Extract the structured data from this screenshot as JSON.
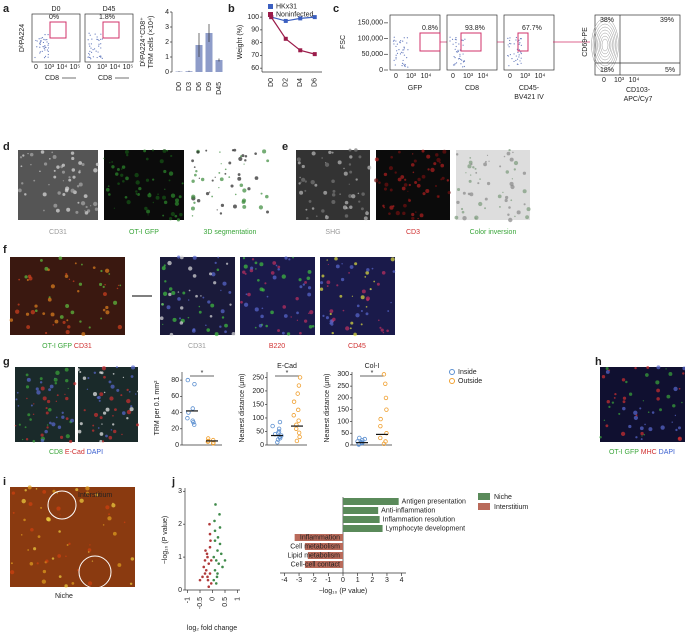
{
  "figure": {
    "panels": {
      "a": {
        "label": "a",
        "flow": [
          {
            "title": "D0",
            "gate": "0%"
          },
          {
            "title": "D45",
            "gate": "1.8%"
          }
        ],
        "flow_ylabel": "DᵇPA224",
        "flow_xlabel": "CD8",
        "flow_xticks": [
          "0",
          "10³",
          "10⁴",
          "10⁵"
        ],
        "bar": {
          "type": "bar",
          "ylabel": [
            "DᵇPA224⁺CD8⁺",
            "TRM cells (×10⁴)"
          ],
          "categories": [
            "D0",
            "D3",
            "D6",
            "D9",
            "D45"
          ],
          "values": [
            0.03,
            0.05,
            1.8,
            2.6,
            0.8
          ],
          "errors": [
            0.02,
            0.03,
            0.8,
            0.6,
            0.1
          ],
          "ylim": [
            0,
            4
          ],
          "yticks": [
            0,
            1,
            2,
            3,
            4
          ],
          "color": "#8e9cc9"
        }
      },
      "b": {
        "label": "b",
        "chart": {
          "type": "line",
          "ylabel": "Weight (%)",
          "categories": [
            "D0",
            "D2",
            "D4",
            "D6"
          ],
          "ylim": [
            57,
            104
          ],
          "yticks": [
            60,
            70,
            80,
            90,
            100
          ],
          "series": [
            {
              "name": "HKx31",
              "color": "#3b5fc0",
              "values": [
                100,
                97,
                99,
                100
              ]
            },
            {
              "name": "Noninfected",
              "color": "#9b1c4a",
              "values": [
                100,
                83,
                74,
                71
              ]
            }
          ]
        }
      },
      "c": {
        "label": "c",
        "ylabel": "FSC",
        "ylim": [
          0,
          175000
        ],
        "yticks": [
          {
            "value": 0,
            "label": "0"
          },
          {
            "value": 50000,
            "label": "50,000"
          },
          {
            "value": 100000,
            "label": "100,000"
          },
          {
            "value": 150000,
            "label": "150,000"
          }
        ],
        "gates": [
          "0.8%",
          "93.8%",
          "67.7%"
        ],
        "xlabels": [
          [
            "GFP"
          ],
          [
            "CD8"
          ],
          [
            "CD45-",
            "BV421 IV"
          ]
        ],
        "xticks": [
          "0",
          "10³",
          "10⁴"
        ],
        "quad": {
          "ylabel": "CD69-PE",
          "xlabel": [
            "CD103-",
            "APC/Cy7"
          ],
          "values": [
            "38%",
            "39%",
            "18%",
            "5%"
          ],
          "ticks": [
            "0",
            "10³",
            "10⁴"
          ]
        }
      },
      "d": {
        "label": "d",
        "captions": [
          [
            {
              "text": "CD31",
              "color": "#9a9a9a"
            }
          ],
          [
            {
              "text": "OT-I GFP",
              "color": "#3aa63a"
            }
          ],
          [
            {
              "text": "3D segmentation",
              "color": "#3aa63a"
            }
          ]
        ]
      },
      "e": {
        "label": "e",
        "captions": [
          [
            {
              "text": "SHG",
              "color": "#9a9a9a"
            }
          ],
          [
            {
              "text": "CD3",
              "color": "#d03030"
            }
          ],
          [
            {
              "text": "Color inversion",
              "color": "#3aa63a"
            }
          ]
        ]
      },
      "f": {
        "label": "f",
        "captions": [
          [
            {
              "text": "OT-I GFP",
              "color": "#3aa63a"
            },
            {
              "text": " CD31",
              "color": "#d03030"
            }
          ],
          [
            {
              "text": "CD31",
              "color": "#9a9a9a"
            }
          ],
          [
            {
              "text": "B220",
              "color": "#d03030"
            }
          ],
          [
            {
              "text": "CD45",
              "color": "#d03030"
            }
          ]
        ]
      },
      "g": {
        "label": "g",
        "caption": [
          {
            "text": "CD8",
            "color": "#3aa63a"
          },
          {
            "text": " E-Cad",
            "color": "#d03030"
          },
          {
            "text": " DAPI",
            "color": "#3a5fd0"
          }
        ],
        "legend": [
          {
            "name": "Inside",
            "color": "#5b8fd0"
          },
          {
            "name": "Outside",
            "color": "#f0a030"
          }
        ],
        "charts": [
          {
            "type": "strip",
            "ylabel": "TRM per 0.1 mm²",
            "star": "*",
            "ylim": [
              0,
              90
            ],
            "yticks": [
              0,
              20,
              40,
              60,
              80
            ],
            "groups": [
              [
                80,
                75,
                45,
                40,
                33,
                30,
                28,
                25
              ],
              [
                8,
                6,
                5,
                4,
                3,
                2
              ]
            ],
            "means": [
              42,
              5
            ]
          },
          {
            "type": "strip",
            "title": "E-Cad",
            "ylabel": "Nearest distance (μm)",
            "star": "*",
            "ylim": [
              0,
              270
            ],
            "yticks": [
              0,
              50,
              100,
              150,
              200,
              250
            ],
            "groups": [
              [
                10,
                20,
                25,
                30,
                35,
                40,
                45,
                50,
                60,
                70,
                85
              ],
              [
                15,
                30,
                45,
                60,
                75,
                90,
                110,
                130,
                160,
                190,
                220,
                250
              ]
            ],
            "means": [
              35,
              70
            ]
          },
          {
            "type": "strip",
            "title": "Col-I",
            "ylabel": "Nearest distance (μm)",
            "star": "*",
            "ylim": [
              0,
              310
            ],
            "yticks": [
              0,
              50,
              100,
              150,
              200,
              250,
              300
            ],
            "groups": [
              [
                2,
                5,
                8,
                10,
                12,
                15,
                20,
                25,
                30
              ],
              [
                5,
                15,
                30,
                50,
                80,
                110,
                150,
                200,
                260,
                300
              ]
            ],
            "means": [
              10,
              45
            ]
          }
        ]
      },
      "h": {
        "label": "h",
        "caption": [
          {
            "text": "OT-I GFP",
            "color": "#3aa63a"
          },
          {
            "text": " MHC",
            "color": "#d03030"
          },
          {
            "text": " DAPI",
            "color": "#3a5fd0"
          }
        ]
      },
      "i": {
        "label": "i",
        "regions": [
          "Interstitium",
          "Niche"
        ]
      },
      "j": {
        "label": "j",
        "volcano": {
          "type": "scatter",
          "ylabel": "−log₁₀ (P value)",
          "xlabel": "log₂ fold change",
          "xlim": [
            -1.1,
            1.1
          ],
          "ylim": [
            0,
            3.1
          ],
          "xticks": [
            -1.0,
            -0.5,
            0,
            0.5,
            1.0
          ],
          "yticks": [
            0,
            1,
            2,
            3
          ],
          "series": [
            {
              "color": "#3f8a4a",
              "x": [
                0.05,
                0.1,
                0.15,
                0.2,
                0.1,
                0.25,
                0.3,
                0.08,
                0.12,
                0.18,
                0.35,
                0.22,
                0.05,
                0.15,
                0.4,
                0.28,
                0.1,
                0.2,
                0.3,
                0.5
              ],
              "y": [
                0.3,
                0.6,
                0.9,
                1.2,
                1.5,
                0.8,
                1.9,
                2.1,
                2.6,
                0.4,
                1.1,
                1.6,
                1.0,
                0.2,
                0.7,
                2.3,
                1.8,
                0.5,
                1.4,
                0.9
              ]
            },
            {
              "color": "#b03a3a",
              "x": [
                -0.05,
                -0.1,
                -0.15,
                -0.2,
                -0.1,
                -0.25,
                -0.3,
                -0.08,
                -0.12,
                -0.18,
                -0.35,
                -0.22,
                -0.05,
                -0.15,
                -0.4,
                -0.28,
                -0.1,
                -0.2,
                -0.3,
                -0.5
              ],
              "y": [
                0.2,
                0.5,
                0.8,
                1.0,
                1.3,
                0.6,
                0.9,
                1.5,
                2.0,
                0.3,
                0.7,
                1.1,
                0.9,
                0.1,
                0.4,
                1.2,
                1.7,
                0.4,
                0.5,
                0.3
              ]
            }
          ]
        },
        "bars": {
          "type": "hbar",
          "xlabel": "−log₁₀ (P value)",
          "xlim": [
            -4.3,
            4.3
          ],
          "xticks": [
            -4,
            -3,
            -2,
            -1,
            0,
            1,
            2,
            3,
            4
          ],
          "categories": [
            "Antigen presentation",
            "Anti-inflammation",
            "Inflammation resolution",
            "Lymphocyte development",
            "Inflammation",
            "Cell metabolism",
            "Lipid metabolism",
            "Cell-cell contact"
          ],
          "values": [
            3.8,
            2.4,
            2.5,
            2.7,
            -3.3,
            -2.6,
            -2.4,
            -2.6
          ],
          "series": [
            {
              "name": "Niche",
              "color": "#5a8a5a"
            },
            {
              "name": "Interstitium",
              "color": "#b96a5a"
            }
          ]
        }
      }
    }
  }
}
